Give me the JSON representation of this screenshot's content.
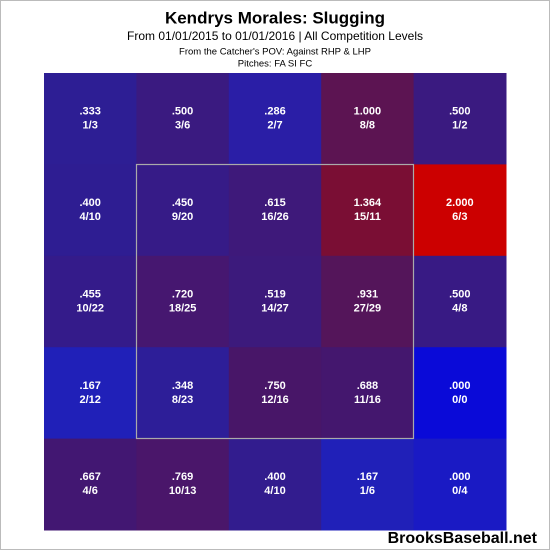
{
  "chart_data": {
    "type": "heatmap",
    "title": "Kendrys Morales: Slugging",
    "subtitle": "From 01/01/2015 to 01/01/2016 | All Competition Levels",
    "notes": [
      "From the Catcher's POV:  Against RHP & LHP",
      "Pitches:  FA  SI  FC"
    ],
    "source": "BrooksBaseball.net",
    "values": [
      [
        0.333,
        0.5,
        0.286,
        1.0,
        0.5
      ],
      [
        0.4,
        0.45,
        0.615,
        1.364,
        2.0
      ],
      [
        0.455,
        0.72,
        0.519,
        0.931,
        0.5
      ],
      [
        0.167,
        0.348,
        0.75,
        0.688,
        0.0
      ],
      [
        0.667,
        0.769,
        0.4,
        0.167,
        0.0
      ]
    ],
    "value_labels": [
      [
        ".333",
        ".500",
        ".286",
        "1.000",
        ".500"
      ],
      [
        ".400",
        ".450",
        ".615",
        "1.364",
        "2.000"
      ],
      [
        ".455",
        ".720",
        ".519",
        ".931",
        ".500"
      ],
      [
        ".167",
        ".348",
        ".750",
        ".688",
        ".000"
      ],
      [
        ".667",
        ".769",
        ".400",
        ".167",
        ".000"
      ]
    ],
    "counts": [
      [
        "1/3",
        "3/6",
        "2/7",
        "8/8",
        "1/2"
      ],
      [
        "4/10",
        "9/20",
        "16/26",
        "15/11",
        "6/3"
      ],
      [
        "10/22",
        "18/25",
        "14/27",
        "27/29",
        "4/8"
      ],
      [
        "2/12",
        "8/23",
        "12/16",
        "11/16",
        "0/0"
      ],
      [
        "4/6",
        "10/13",
        "4/10",
        "1/6",
        "0/4"
      ]
    ],
    "colors": [
      [
        "#2d1e94",
        "#3a1a80",
        "#2a1ea6",
        "#5c1452",
        "#3a1a80"
      ],
      [
        "#2e1d92",
        "#361b87",
        "#3e197a",
        "#7a0e34",
        "#cc0000"
      ],
      [
        "#341b8a",
        "#461770",
        "#3c1a7c",
        "#54155a",
        "#381a84"
      ],
      [
        "#2020b8",
        "#2d1e98",
        "#481668",
        "#44176e",
        "#0a0ad8"
      ],
      [
        "#421772",
        "#4a166a",
        "#321c8e",
        "#2020b8",
        "#1a1ac4"
      ]
    ]
  }
}
